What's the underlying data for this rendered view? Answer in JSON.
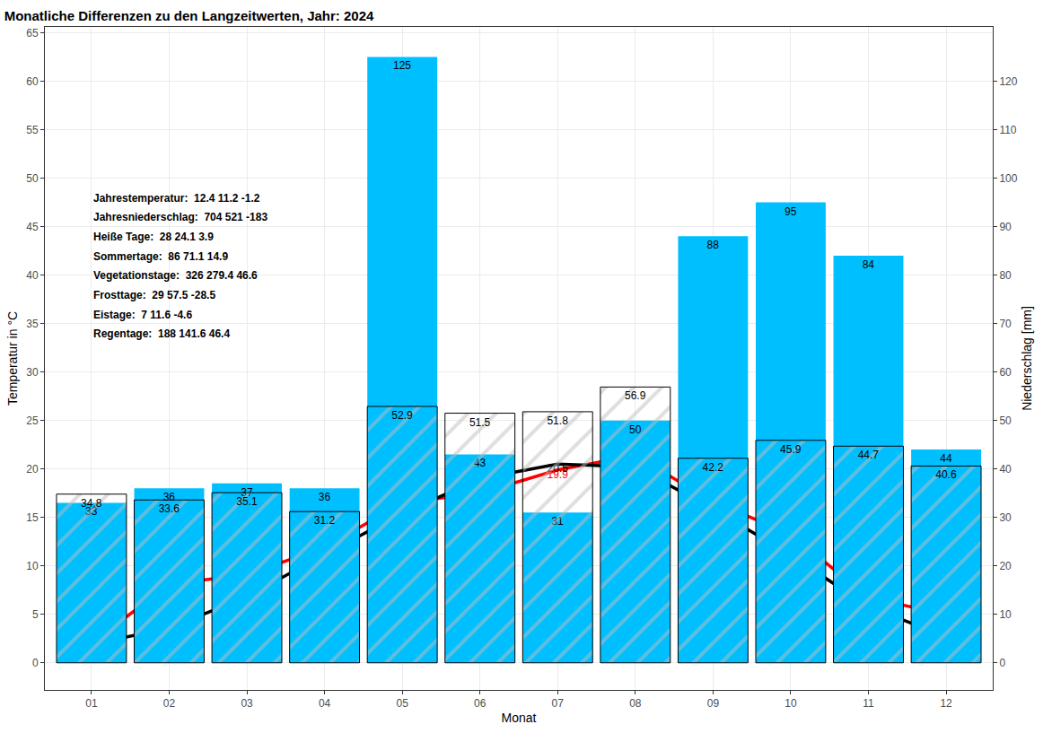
{
  "chart_data": {
    "type": "bar",
    "title": "Monatliche Differenzen zu den Langzeitwerten, Jahr: 2024",
    "x_label": "Monat",
    "y_label": "Temperatur in °C",
    "y2_label": "Niederschlag [mm]",
    "categories": [
      "01",
      "02",
      "03",
      "04",
      "05",
      "06",
      "07",
      "08",
      "09",
      "10",
      "11",
      "12"
    ],
    "series": [
      {
        "type": "bar",
        "axis": "y2",
        "color": "#00bfff",
        "values": [
          33,
          36,
          37,
          36,
          125,
          43,
          31,
          50,
          88,
          95,
          84,
          44
        ]
      },
      {
        "type": "bar",
        "axis": "y2",
        "color": "#bebebe",
        "marker": "hatch",
        "values": [
          34.8,
          33.6,
          35.1,
          31.2,
          52.9,
          51.5,
          51.8,
          56.9,
          42.2,
          45.9,
          44.7,
          40.6
        ]
      },
      {
        "type": "line",
        "color": "#ff0000",
        "values": [
          2,
          8.1,
          9.1,
          11.9,
          16.5,
          17.5,
          19.9,
          21.4,
          16.6,
          13.3,
          6.7,
          5
        ]
      },
      {
        "type": "line",
        "color": "#000000",
        "values": [
          1.9,
          3.6,
          6.8,
          11.2,
          15.4,
          19,
          20.5,
          20.2,
          15.9,
          11.1,
          5.8,
          2.7
        ]
      }
    ],
    "ylim": [
      -2.8,
      65.6
    ],
    "yticks": [
      0,
      5,
      10,
      15,
      20,
      25,
      30,
      35,
      40,
      45,
      50,
      55,
      60,
      65
    ],
    "y2lim": [
      -5.6,
      131.2
    ],
    "y2ticks": [
      0,
      10,
      20,
      30,
      40,
      50,
      60,
      70,
      80,
      90,
      100,
      110,
      120
    ],
    "grid": true,
    "data_labels": true,
    "annotations": [
      "Jahrestemperatur:  12.4 11.2 -1.2",
      "Jahresniederschlag:  704 521 -183",
      "Heiße Tage:  28 24.1 3.9",
      "Sommertage:  86 71.1 14.9",
      "Vegetationstage:  326 279.4 46.6",
      "Frosttage:  29 57.5 -28.5",
      "Eistage:  7 11.6 -4.6",
      "Regentage:  188 141.6 46.4"
    ]
  }
}
